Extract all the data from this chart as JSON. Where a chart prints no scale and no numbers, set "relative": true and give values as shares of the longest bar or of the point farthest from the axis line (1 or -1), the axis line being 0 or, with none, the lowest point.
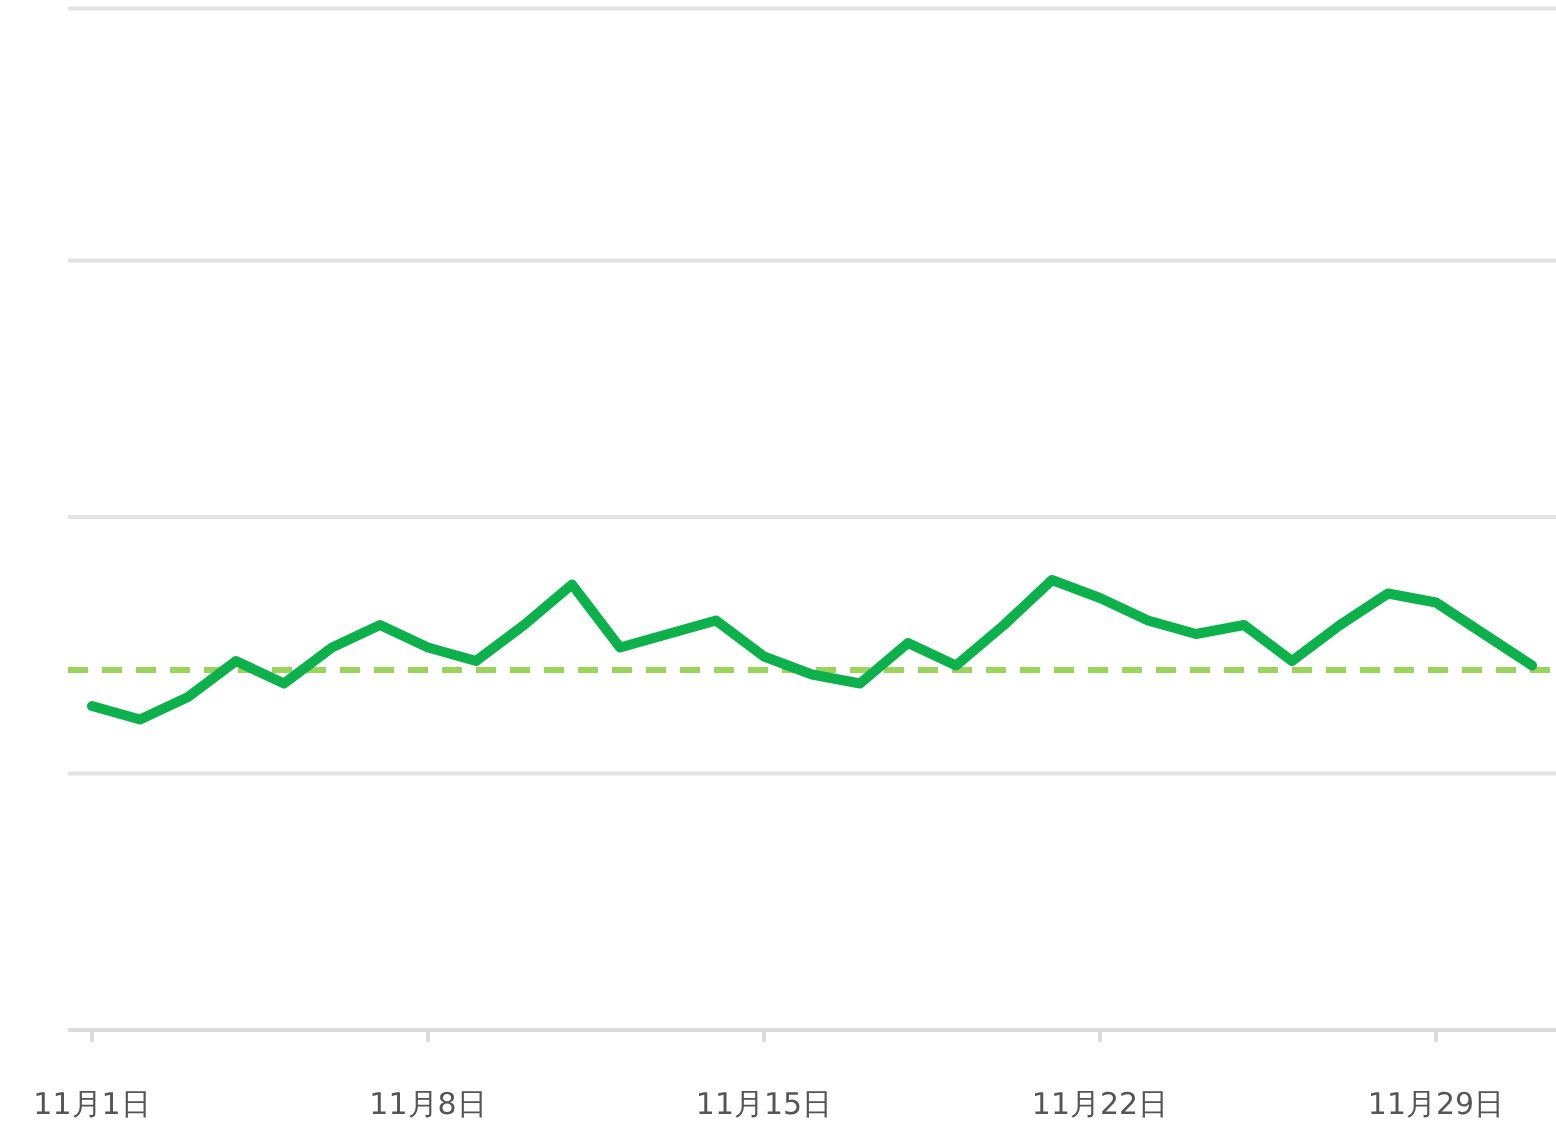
{
  "chart_data": {
    "type": "line",
    "relative": true,
    "categories": [
      "11月1日",
      null,
      null,
      null,
      null,
      null,
      null,
      "11月8日",
      null,
      null,
      null,
      null,
      null,
      null,
      "11月15日",
      null,
      null,
      null,
      null,
      null,
      null,
      "11月22日",
      null,
      null,
      null,
      null,
      null,
      null,
      "11月29日",
      null,
      null
    ],
    "series": [
      {
        "color": "#0db14b",
        "values": [
          0.72,
          0.69,
          0.74,
          0.82,
          0.77,
          0.85,
          0.9,
          0.85,
          0.82,
          0.9,
          0.99,
          0.85,
          0.88,
          0.91,
          0.83,
          0.79,
          0.77,
          0.86,
          0.81,
          0.9,
          1,
          0.96,
          0.91,
          0.88,
          0.9,
          0.82,
          0.9,
          0.97,
          0.95,
          0.88,
          0.81
        ]
      }
    ],
    "ref_lines": [
      {
        "axis": "y",
        "value": 0.8,
        "color": "#9ad45c",
        "line_style": "dashed"
      },
      {
        "axis": "y",
        "value": 0.57,
        "color": "#e3e3e3",
        "line_style": "solid"
      },
      {
        "axis": "y",
        "value": 1.14,
        "color": "#e3e3e3",
        "line_style": "solid"
      },
      {
        "axis": "y",
        "value": 1.71,
        "color": "#e3e3e3",
        "line_style": "solid"
      },
      {
        "axis": "y",
        "value": 2.27,
        "color": "#e3e3e3",
        "line_style": "solid"
      }
    ],
    "legend": false,
    "marker": "none",
    "line_style": "solid"
  }
}
